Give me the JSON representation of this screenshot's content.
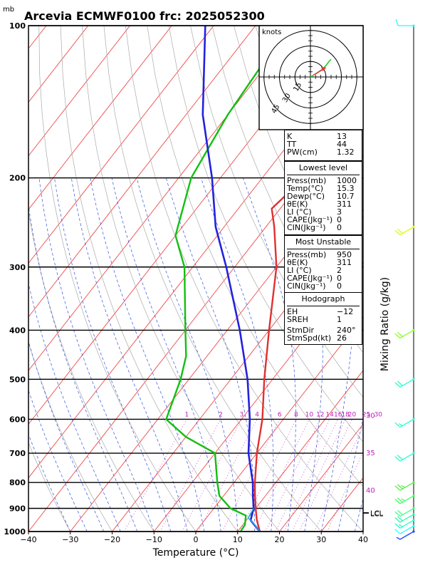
{
  "title": "Arcevia ECMWF0100 frc: 2025052300",
  "y_unit": "mb",
  "xlabel": "Temperature (°C)",
  "right_label": "Mixing Ratio (g/kg)",
  "hodograph": {
    "unit": "knots",
    "ring_labels": [
      "15",
      "30",
      "45"
    ],
    "wind_points": [
      [
        0,
        0
      ],
      [
        5,
        3
      ],
      [
        11,
        7
      ],
      [
        15,
        11
      ],
      [
        18,
        15
      ],
      [
        20,
        17
      ]
    ],
    "storm_motion": [
      15,
      9
    ]
  },
  "indices": [
    {
      "label": "K",
      "value": "13"
    },
    {
      "label": "TT",
      "value": "44"
    },
    {
      "label": "PW(cm)",
      "value": "1.32"
    }
  ],
  "lowest_level": {
    "header": "Lowest level",
    "rows": [
      {
        "label": "Press(mb)",
        "value": "1000"
      },
      {
        "label": "Temp(°C)",
        "value": "15.3"
      },
      {
        "label": "Dewp(°C)",
        "value": "10.7"
      },
      {
        "label": "θE(K)",
        "value": "311"
      },
      {
        "label": "LI (°C)",
        "value": "3"
      },
      {
        "label": "CAPE(Jkg⁻¹)",
        "value": "0"
      },
      {
        "label": "CIN(Jkg⁻¹)",
        "value": "0"
      }
    ]
  },
  "most_unstable": {
    "header": "Most Unstable",
    "rows": [
      {
        "label": "Press(mb)",
        "value": "950"
      },
      {
        "label": "θE(K)",
        "value": "311"
      },
      {
        "label": "LI (°C)",
        "value": "2"
      },
      {
        "label": "CAPE(Jkg⁻¹)",
        "value": "0"
      },
      {
        "label": "CIN(Jkg⁻¹)",
        "value": "0"
      }
    ]
  },
  "hodograph_stats": {
    "header": "Hodograph",
    "rows": [
      {
        "label": "EH",
        "value": "−12"
      },
      {
        "label": "SREH",
        "value": "1"
      },
      {
        "label": "StmDir",
        "value": "240°"
      },
      {
        "label": "StmSpd(kt)",
        "value": "26"
      }
    ]
  },
  "chart_data": {
    "type": "line",
    "title": "Arcevia ECMWF0100 frc: 2025052300",
    "xlabel": "Temperature (°C)",
    "ylabel": "mb",
    "xlim": [
      -40,
      40
    ],
    "ylim": [
      1000,
      100
    ],
    "y_scale": "log",
    "x_ticks": [
      -40,
      -30,
      -20,
      -10,
      0,
      10,
      20,
      30,
      40
    ],
    "y_ticks": [
      100,
      200,
      300,
      400,
      500,
      600,
      700,
      800,
      900,
      1000
    ],
    "mixing_ratio_labels": [
      "1",
      "2",
      "3",
      "4",
      "6",
      "8",
      "10",
      "12",
      "14",
      "16",
      "18",
      "20",
      "25",
      "30"
    ],
    "theta_e_labels": [
      {
        "text": "30",
        "p": 590
      },
      {
        "text": "35",
        "p": 700
      },
      {
        "text": "40",
        "p": 830
      }
    ],
    "lcl_labels": [
      "LCL",
      "LCL"
    ],
    "series": [
      {
        "name": "Temperature",
        "color": "#e03030",
        "points": [
          [
            1000,
            15.3
          ],
          [
            950,
            12.5
          ],
          [
            900,
            10
          ],
          [
            850,
            7.5
          ],
          [
            800,
            5
          ],
          [
            700,
            0
          ],
          [
            600,
            -5
          ],
          [
            500,
            -12
          ],
          [
            400,
            -20
          ],
          [
            300,
            -30
          ],
          [
            250,
            -38
          ],
          [
            230,
            -42
          ],
          [
            200,
            -40
          ],
          [
            150,
            -36
          ],
          [
            100,
            -30
          ]
        ]
      },
      {
        "name": "Dewpoint",
        "color": "#10c010",
        "points": [
          [
            1000,
            10.7
          ],
          [
            970,
            10.5
          ],
          [
            930,
            9
          ],
          [
            900,
            4
          ],
          [
            850,
            -1
          ],
          [
            800,
            -4
          ],
          [
            700,
            -10
          ],
          [
            650,
            -20
          ],
          [
            600,
            -28
          ],
          [
            500,
            -32
          ],
          [
            450,
            -35
          ],
          [
            400,
            -40
          ],
          [
            300,
            -52
          ],
          [
            260,
            -60
          ],
          [
            200,
            -67
          ],
          [
            150,
            -70
          ],
          [
            100,
            -72
          ]
        ]
      },
      {
        "name": "Parcel (lowest level)",
        "color": "#2222dd",
        "points": [
          [
            1000,
            15.3
          ],
          [
            950,
            11
          ],
          [
            900,
            9.5
          ],
          [
            850,
            7
          ],
          [
            800,
            4.5
          ],
          [
            700,
            -2
          ],
          [
            600,
            -8
          ],
          [
            500,
            -16
          ],
          [
            400,
            -27
          ],
          [
            300,
            -42
          ],
          [
            250,
            -52
          ],
          [
            200,
            -62
          ],
          [
            150,
            -76
          ],
          [
            100,
            -92
          ]
        ]
      },
      {
        "name": "Parcel (most unstable)",
        "color": "#22aadd",
        "points": [
          [
            1000,
            15.3
          ],
          [
            960,
            12
          ],
          [
            940,
            10
          ],
          [
            900,
            9.5
          ]
        ]
      }
    ],
    "wind_barbs": [
      {
        "p": 1000,
        "dir": 240,
        "spd": 5,
        "color": "#2244ff"
      },
      {
        "p": 975,
        "dir": 240,
        "spd": 10,
        "color": "#22ffff"
      },
      {
        "p": 950,
        "dir": 240,
        "spd": 15,
        "color": "#22ffcc"
      },
      {
        "p": 925,
        "dir": 240,
        "spd": 20,
        "color": "#22ffaa"
      },
      {
        "p": 900,
        "dir": 240,
        "spd": 20,
        "color": "#44ff88"
      },
      {
        "p": 850,
        "dir": 240,
        "spd": 25,
        "color": "#44ff66"
      },
      {
        "p": 800,
        "dir": 240,
        "spd": 25,
        "color": "#55ee44"
      },
      {
        "p": 700,
        "dir": 240,
        "spd": 20,
        "color": "#22ffcc"
      },
      {
        "p": 600,
        "dir": 240,
        "spd": 15,
        "color": "#22ffcc"
      },
      {
        "p": 500,
        "dir": 240,
        "spd": 20,
        "color": "#22ffcc"
      },
      {
        "p": 400,
        "dir": 240,
        "spd": 20,
        "color": "#88ff22"
      },
      {
        "p": 250,
        "dir": 240,
        "spd": 20,
        "color": "#ddff00"
      },
      {
        "p": 100,
        "dir": 270,
        "spd": 10,
        "color": "#22ffff"
      }
    ]
  }
}
